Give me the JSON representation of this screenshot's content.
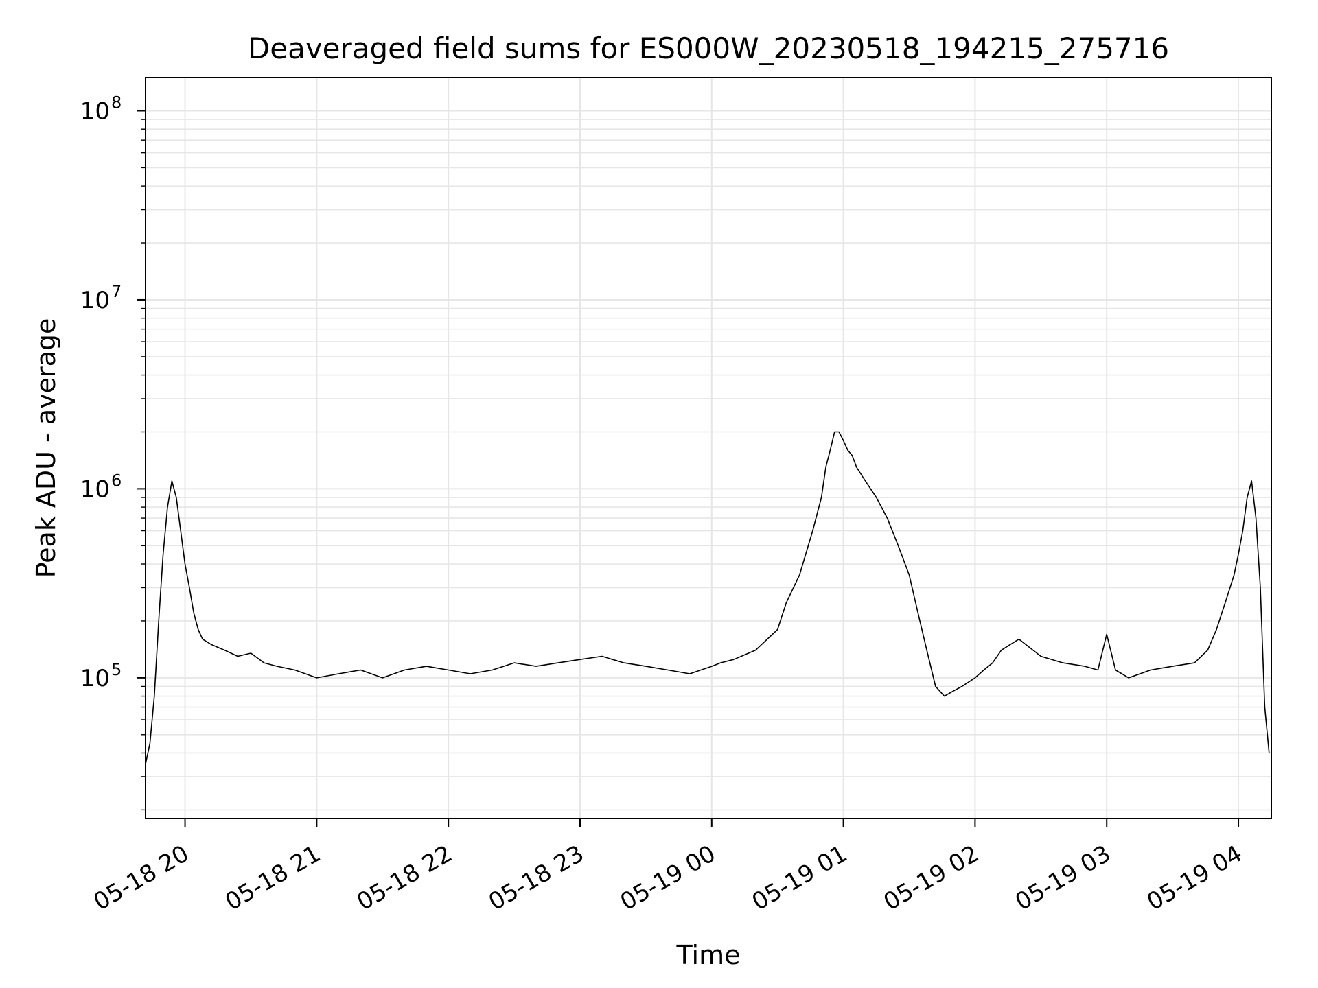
{
  "chart_data": {
    "type": "line",
    "title": "Deaveraged field sums for ES000W_20230518_194215_275716",
    "xlabel": "Time",
    "ylabel": "Peak ADU - average",
    "yscale": "log",
    "ylim": [
      18000,
      150000000
    ],
    "xlim": [
      "2023-05-18 19:42",
      "2023-05-19 04:15"
    ],
    "grid": true,
    "line_color": "#000000",
    "grid_color": "#e6e6e6",
    "x_ticks": [
      {
        "value": "2023-05-18 20:00",
        "label": "05-18 20"
      },
      {
        "value": "2023-05-18 21:00",
        "label": "05-18 21"
      },
      {
        "value": "2023-05-18 22:00",
        "label": "05-18 22"
      },
      {
        "value": "2023-05-18 23:00",
        "label": "05-18 23"
      },
      {
        "value": "2023-05-19 00:00",
        "label": "05-19 00"
      },
      {
        "value": "2023-05-19 01:00",
        "label": "05-19 01"
      },
      {
        "value": "2023-05-19 02:00",
        "label": "05-19 02"
      },
      {
        "value": "2023-05-19 03:00",
        "label": "05-19 03"
      },
      {
        "value": "2023-05-19 04:00",
        "label": "05-19 04"
      }
    ],
    "y_ticks": [
      {
        "value": 100000,
        "base": "10",
        "exp": "5"
      },
      {
        "value": 1000000,
        "base": "10",
        "exp": "6"
      },
      {
        "value": 10000000,
        "base": "10",
        "exp": "7"
      },
      {
        "value": 100000000,
        "base": "10",
        "exp": "8"
      }
    ],
    "series": [
      {
        "x": [
          "2023-05-18 19:42",
          "2023-05-18 19:44",
          "2023-05-18 19:46",
          "2023-05-18 19:48",
          "2023-05-18 19:50",
          "2023-05-18 19:52",
          "2023-05-18 19:54",
          "2023-05-18 19:56",
          "2023-05-18 19:58",
          "2023-05-18 20:00",
          "2023-05-18 20:02",
          "2023-05-18 20:04",
          "2023-05-18 20:06",
          "2023-05-18 20:08",
          "2023-05-18 20:12",
          "2023-05-18 20:18",
          "2023-05-18 20:24",
          "2023-05-18 20:30",
          "2023-05-18 20:36",
          "2023-05-18 20:42",
          "2023-05-18 20:50",
          "2023-05-18 21:00",
          "2023-05-18 21:10",
          "2023-05-18 21:20",
          "2023-05-18 21:30",
          "2023-05-18 21:40",
          "2023-05-18 21:50",
          "2023-05-18 22:00",
          "2023-05-18 22:10",
          "2023-05-18 22:20",
          "2023-05-18 22:30",
          "2023-05-18 22:40",
          "2023-05-18 22:50",
          "2023-05-18 23:00",
          "2023-05-18 23:10",
          "2023-05-18 23:20",
          "2023-05-18 23:30",
          "2023-05-18 23:40",
          "2023-05-18 23:50",
          "2023-05-19 00:00",
          "2023-05-19 00:04",
          "2023-05-19 00:10",
          "2023-05-19 00:20",
          "2023-05-19 00:30",
          "2023-05-19 00:34",
          "2023-05-19 00:40",
          "2023-05-19 00:46",
          "2023-05-19 00:50",
          "2023-05-19 00:52",
          "2023-05-19 00:54",
          "2023-05-19 00:56",
          "2023-05-19 00:58",
          "2023-05-19 01:00",
          "2023-05-19 01:02",
          "2023-05-19 01:04",
          "2023-05-19 01:06",
          "2023-05-19 01:10",
          "2023-05-19 01:15",
          "2023-05-19 01:20",
          "2023-05-19 01:25",
          "2023-05-19 01:30",
          "2023-05-19 01:34",
          "2023-05-19 01:38",
          "2023-05-19 01:42",
          "2023-05-19 01:46",
          "2023-05-19 01:50",
          "2023-05-19 01:54",
          "2023-05-19 02:00",
          "2023-05-19 02:04",
          "2023-05-19 02:08",
          "2023-05-19 02:12",
          "2023-05-19 02:16",
          "2023-05-19 02:20",
          "2023-05-19 02:30",
          "2023-05-19 02:40",
          "2023-05-19 02:50",
          "2023-05-19 02:56",
          "2023-05-19 03:00",
          "2023-05-19 03:04",
          "2023-05-19 03:10",
          "2023-05-19 03:20",
          "2023-05-19 03:30",
          "2023-05-19 03:40",
          "2023-05-19 03:46",
          "2023-05-19 03:50",
          "2023-05-19 03:54",
          "2023-05-19 03:58",
          "2023-05-19 04:00",
          "2023-05-19 04:02",
          "2023-05-19 04:04",
          "2023-05-19 04:06",
          "2023-05-19 04:08",
          "2023-05-19 04:10",
          "2023-05-19 04:12",
          "2023-05-19 04:14"
        ],
        "y": [
          35000,
          45000,
          80000,
          200000,
          450000,
          800000,
          1100000,
          900000,
          600000,
          400000,
          300000,
          220000,
          180000,
          160000,
          150000,
          140000,
          130000,
          135000,
          120000,
          115000,
          110000,
          100000,
          105000,
          110000,
          100000,
          110000,
          115000,
          110000,
          105000,
          110000,
          120000,
          115000,
          120000,
          125000,
          130000,
          120000,
          115000,
          110000,
          105000,
          115000,
          120000,
          125000,
          140000,
          180000,
          250000,
          350000,
          600000,
          900000,
          1300000,
          1600000,
          2000000,
          2000000,
          1800000,
          1600000,
          1500000,
          1300000,
          1100000,
          900000,
          700000,
          500000,
          350000,
          220000,
          140000,
          90000,
          80000,
          85000,
          90000,
          100000,
          110000,
          120000,
          140000,
          150000,
          160000,
          130000,
          120000,
          115000,
          110000,
          170000,
          110000,
          100000,
          110000,
          115000,
          120000,
          140000,
          180000,
          250000,
          350000,
          450000,
          600000,
          900000,
          1100000,
          700000,
          300000,
          70000,
          40000
        ]
      }
    ]
  }
}
